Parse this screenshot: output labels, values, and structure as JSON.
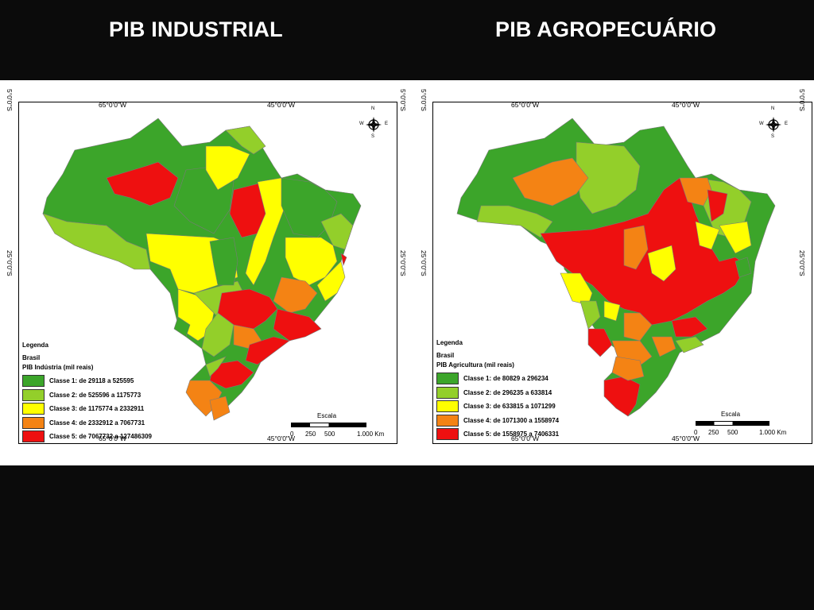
{
  "titles": {
    "left": "PIB INDUSTRIAL",
    "right": "PIB AGROPECUÁRIO"
  },
  "coords": {
    "lon_65": "65°0'0\"W",
    "lon_45": "45°0'0\"W",
    "lat_5": "5°0'0\"S",
    "lat_25": "25°0'0\"S"
  },
  "compass": {
    "n": "N",
    "s": "S",
    "e": "E",
    "w": "W"
  },
  "scale": {
    "title": "Escala",
    "t0": "0",
    "t1": "250",
    "t2": "500",
    "t3": "1.000 Km"
  },
  "legend_common": {
    "heading": "Legenda",
    "country": "Brasil"
  },
  "maps": {
    "industrial": {
      "legend_title": "PIB Indústria (mil reais)",
      "classes": [
        {
          "label": "Classe 1: de 29118 a 525595",
          "color": "#3ca52a"
        },
        {
          "label": "Classe 2: de 525596 a 1175773",
          "color": "#93cf2a"
        },
        {
          "label": "Classe 3: de 1175774 a 2332911",
          "color": "#ffff00"
        },
        {
          "label": "Classe 4: de 2332912 a 7067731",
          "color": "#f48314"
        },
        {
          "label": "Classe 5: de 7067732 a 127486309",
          "color": "#ee1010"
        }
      ]
    },
    "agro": {
      "legend_title": "PIB Agricultura (mil reais)",
      "classes": [
        {
          "label": "Classe 1: de 80829 a 296234",
          "color": "#3ca52a"
        },
        {
          "label": "Classe 2: de 296235 a 633814",
          "color": "#93cf2a"
        },
        {
          "label": "Classe 3: de 633815 a 1071299",
          "color": "#ffff00"
        },
        {
          "label": "Classe 4: de 1071300 a 1558974",
          "color": "#f48314"
        },
        {
          "label": "Classe 5: de 1558975 a 7406331",
          "color": "#ee1010"
        }
      ]
    }
  }
}
